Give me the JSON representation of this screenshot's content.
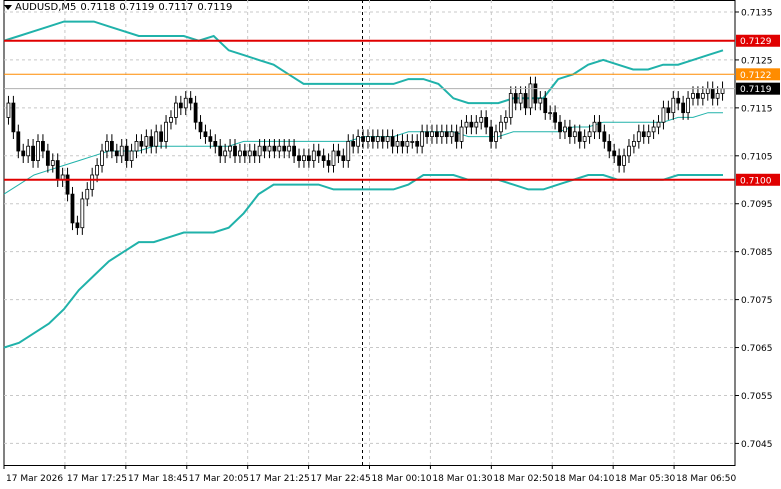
{
  "header": {
    "symbol": "AUDUSD,M5",
    "open": "0.7118",
    "high": "0.7119",
    "low": "0.7117",
    "close": "0.7119"
  },
  "colors": {
    "background": "#ffffff",
    "candle": "#000000",
    "bands": "#20b2aa",
    "level_line": "#e00000",
    "orange_line": "#ff8c00",
    "price_tag": "#000000",
    "grid": "#c8c8c8"
  },
  "chart_data": {
    "type": "candlestick",
    "symbol": "AUDUSD",
    "timeframe": "M5",
    "y_ticks": [
      "0.7135",
      "0.7125",
      "0.7115",
      "0.7105",
      "0.7095",
      "0.7085",
      "0.7075",
      "0.7065",
      "0.7055",
      "0.7045"
    ],
    "ylim": [
      0.70405,
      0.71375
    ],
    "x_ticks": [
      "17 Mar 2026",
      "17 Mar 17:25",
      "17 Mar 18:45",
      "17 Mar 20:05",
      "17 Mar 21:25",
      "17 Mar 22:45",
      "18 Mar 00:10",
      "18 Mar 01:30",
      "18 Mar 02:50",
      "18 Mar 04:10",
      "18 Mar 05:30",
      "18 Mar 06:50"
    ],
    "grid": true,
    "session_separator_label": "18 Mar 00:10",
    "levels": [
      {
        "price": 0.7129,
        "label": "0.7129",
        "color": "#e00000"
      },
      {
        "price": 0.71,
        "label": "0.7100",
        "color": "#e00000"
      },
      {
        "price": 0.7122,
        "label": "0.7122",
        "color": "#ff8c00"
      }
    ],
    "current_price": {
      "price": 0.7119,
      "label": "0.7119"
    },
    "closes": [
      0.7116,
      0.711,
      0.7106,
      0.7105,
      0.7107,
      0.7104,
      0.7108,
      0.7106,
      0.7103,
      0.7104,
      0.71,
      0.7101,
      0.7097,
      0.7091,
      0.709,
      0.7096,
      0.7098,
      0.7101,
      0.7103,
      0.7106,
      0.7108,
      0.7106,
      0.7105,
      0.7107,
      0.7104,
      0.7106,
      0.7108,
      0.7107,
      0.7109,
      0.7107,
      0.711,
      0.7108,
      0.7112,
      0.7113,
      0.7116,
      0.7115,
      0.7117,
      0.7116,
      0.7112,
      0.711,
      0.7109,
      0.7108,
      0.7107,
      0.7105,
      0.7106,
      0.7107,
      0.7105,
      0.7106,
      0.7105,
      0.7106,
      0.7105,
      0.7107,
      0.7106,
      0.7107,
      0.7106,
      0.7107,
      0.7106,
      0.7107,
      0.7105,
      0.7104,
      0.7105,
      0.7104,
      0.7106,
      0.7105,
      0.7104,
      0.7103,
      0.7106,
      0.7105,
      0.7104,
      0.7108,
      0.7107,
      0.7109,
      0.7108,
      0.7109,
      0.7108,
      0.7109,
      0.7108,
      0.7109,
      0.7107,
      0.7108,
      0.7107,
      0.7108,
      0.7108,
      0.7107,
      0.711,
      0.7109,
      0.711,
      0.7109,
      0.711,
      0.7109,
      0.711,
      0.7108,
      0.7111,
      0.7112,
      0.7111,
      0.7112,
      0.7113,
      0.7111,
      0.7108,
      0.711,
      0.7112,
      0.7113,
      0.7118,
      0.7116,
      0.7118,
      0.7115,
      0.712,
      0.7116,
      0.7117,
      0.7114,
      0.7114,
      0.7112,
      0.711,
      0.7111,
      0.7109,
      0.711,
      0.7108,
      0.7109,
      0.711,
      0.7112,
      0.711,
      0.7108,
      0.7106,
      0.7105,
      0.7103,
      0.7105,
      0.7107,
      0.7108,
      0.711,
      0.7109,
      0.711,
      0.7111,
      0.7112,
      0.7115,
      0.7114,
      0.7117,
      0.7116,
      0.7114,
      0.7117,
      0.7118,
      0.7117,
      0.7118,
      0.7119,
      0.7117,
      0.7118,
      0.7119
    ],
    "band_upper": [
      0.7129,
      0.713,
      0.7131,
      0.7132,
      0.7133,
      0.7133,
      0.7133,
      0.7132,
      0.7131,
      0.713,
      0.713,
      0.713,
      0.713,
      0.7129,
      0.713,
      0.7127,
      0.7126,
      0.7125,
      0.7124,
      0.7122,
      0.712,
      0.712,
      0.712,
      0.712,
      0.712,
      0.712,
      0.712,
      0.7121,
      0.7121,
      0.712,
      0.7117,
      0.7116,
      0.7116,
      0.7116,
      0.7117,
      0.7117,
      0.7117,
      0.7121,
      0.7122,
      0.7124,
      0.7125,
      0.7124,
      0.7123,
      0.7123,
      0.7124,
      0.7124,
      0.7125,
      0.7126,
      0.7127
    ],
    "band_middle": [
      0.7097,
      0.7099,
      0.7101,
      0.7102,
      0.7103,
      0.7104,
      0.7105,
      0.7106,
      0.7106,
      0.7106,
      0.7107,
      0.7107,
      0.7107,
      0.7107,
      0.7107,
      0.7107,
      0.7108,
      0.7108,
      0.7108,
      0.7108,
      0.7108,
      0.7108,
      0.7108,
      0.7108,
      0.7109,
      0.7109,
      0.7109,
      0.711,
      0.711,
      0.711,
      0.711,
      0.7109,
      0.7109,
      0.7109,
      0.711,
      0.711,
      0.711,
      0.711,
      0.7111,
      0.7111,
      0.7112,
      0.7112,
      0.7112,
      0.7112,
      0.7112,
      0.7113,
      0.7113,
      0.7114,
      0.7114
    ],
    "band_lower": [
      0.7065,
      0.7066,
      0.7068,
      0.707,
      0.7073,
      0.7077,
      0.708,
      0.7083,
      0.7085,
      0.7087,
      0.7087,
      0.7088,
      0.7089,
      0.7089,
      0.7089,
      0.709,
      0.7093,
      0.7097,
      0.7099,
      0.7099,
      0.7099,
      0.7099,
      0.7098,
      0.7098,
      0.7098,
      0.7098,
      0.7098,
      0.7099,
      0.7101,
      0.7101,
      0.7101,
      0.71,
      0.71,
      0.71,
      0.7099,
      0.7098,
      0.7098,
      0.7099,
      0.71,
      0.7101,
      0.7101,
      0.71,
      0.71,
      0.71,
      0.71,
      0.7101,
      0.7101,
      0.7101,
      0.7101
    ]
  }
}
